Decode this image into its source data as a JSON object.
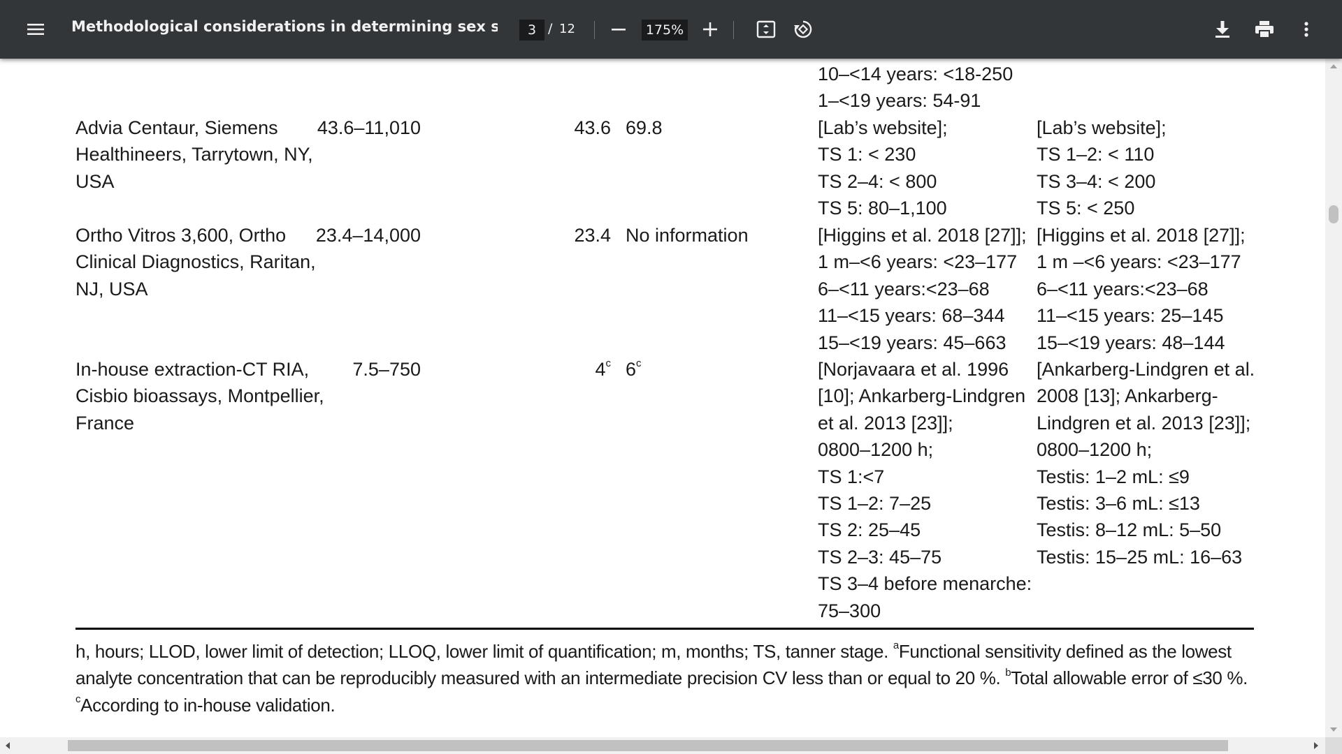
{
  "toolbar": {
    "title": "Methodological considerations in determining sex steroids in ...",
    "page_current": "3",
    "page_separator": "/",
    "page_total": "12",
    "zoom": "175%",
    "icons": [
      "menu-icon",
      "zoom-out-icon",
      "zoom-in-icon",
      "fit-page-icon",
      "rotate-icon",
      "download-icon",
      "print-icon",
      "more-vert-icon"
    ]
  },
  "table": {
    "top_fragment": {
      "col_girls": "10–<14 years: <18-250\n1–<19 years: 54-91"
    },
    "rows": [
      {
        "assay": "Advia Centaur, Siemens\nHealthineers, Tarrytown, NY,\nUSA",
        "range": "43.6–11,010",
        "llod": "43.6",
        "lloq": "69.8",
        "girls": "[Lab’s website];\nTS 1: < 230\nTS 2–4: < 800\nTS 5: 80–1,100",
        "boys": "[Lab’s website];\nTS 1–2: < 110\nTS 3–4: < 200\nTS 5: < 250"
      },
      {
        "assay": "Ortho Vitros 3,600, Ortho\nClinical Diagnostics, Raritan,\nNJ, USA",
        "range": "23.4–14,000",
        "llod": "23.4",
        "lloq": "No information",
        "girls": "[Higgins et al. 2018 [27]];\n1 m–<6 years: <23–177\n6–<11 years:<23–68\n11–<15 years: 68–344\n15–<19 years: 45–663",
        "boys": "[Higgins et al. 2018 [27]];\n1 m –<6 years: <23–177\n6–<11 years:<23–68\n11–<15 years: 25–145\n15–<19 years: 48–144"
      },
      {
        "assay": "In-house extraction-CT RIA,\nCisbio bioassays, Montpellier,\nFrance",
        "range": "7.5–750",
        "llod": "4",
        "llod_sup": "c",
        "lloq": "6",
        "lloq_sup": "c",
        "girls": "[Norjavaara et al. 1996\n[10]; Ankarberg-Lindgren\net al. 2013 [23]];\n0800–1200 h;\nTS 1:<7\nTS 1–2: 7–25\nTS 2: 25–45\nTS 2–3: 45–75\nTS 3–4 before menarche:\n75–300",
        "boys": "[Ankarberg-Lindgren et al.\n2008 [13]; Ankarberg-\nLindgren et al. 2013 [23]];\n0800–1200 h;\nTestis: 1–2 mL: ≤9\nTestis: 3–6 mL: ≤13\nTestis: 8–12 mL: 5–50\nTestis: 15–25 mL: 16–63"
      }
    ]
  },
  "footnote": {
    "part1": "h, hours; LLOD, lower limit of detection; LLOQ, lower limit of quantification; m, months; TS, tanner stage. ",
    "sup_a": "a",
    "part2": "Functional sensitivity defined as the lowest analyte concentration that can be reproducibly measured with an intermediate precision CV less than or equal to 20 %. ",
    "sup_b": "b",
    "part3": "Total allowable error of ≤30 %. ",
    "sup_c": "c",
    "part4": "According to in-house validation."
  }
}
